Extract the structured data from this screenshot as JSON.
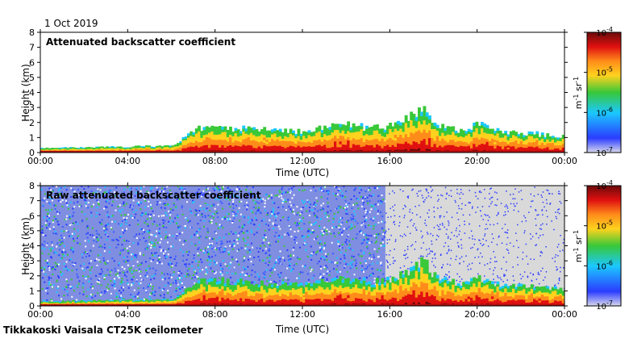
{
  "header": {
    "date": "1 Oct 2019"
  },
  "footer": {
    "site": "Tikkakoski Vaisala CT25K ceilometer"
  },
  "colors": {
    "background": "#ffffff",
    "plot_background_top": "#ffffff",
    "plot_background_bottom": "#d9d9d9",
    "colormap": [
      "#d8d8ec",
      "#2b3cff",
      "#1bc8ff",
      "#38c838",
      "#ffd21e",
      "#ff8c1a",
      "#e01010",
      "#6a0a0a"
    ]
  },
  "chart_data": [
    {
      "type": "heatmap",
      "title": "Attenuated backscatter coefficient",
      "xlabel": "Time (UTC)",
      "ylabel": "Height (km)",
      "x_ticks": [
        "00:00",
        "04:00",
        "08:00",
        "12:00",
        "16:00",
        "20:00",
        "00:00"
      ],
      "y_ticks": [
        "0",
        "1",
        "2",
        "3",
        "4",
        "5",
        "6",
        "7",
        "8"
      ],
      "xlim_hours": [
        0,
        24
      ],
      "ylim_km": [
        0,
        8
      ],
      "grid": false,
      "colorbar": {
        "ticks": [
          "10-7",
          "10-6",
          "10-5",
          "10-4"
        ],
        "label": "m-1 sr-1",
        "scale": "log",
        "range": [
          1e-07,
          0.0001
        ]
      },
      "approx_layer_top_km": {
        "hours": [
          0,
          2,
          4,
          6,
          7.2,
          8,
          10,
          12,
          14,
          15,
          16,
          17,
          17.5,
          18,
          19,
          20,
          21,
          22,
          23,
          24
        ],
        "values": [
          0.3,
          0.35,
          0.4,
          0.45,
          1.6,
          1.7,
          1.5,
          1.4,
          1.9,
          1.6,
          1.8,
          2.5,
          3.0,
          2.0,
          1.5,
          1.9,
          1.4,
          1.3,
          1.2,
          1.1
        ]
      }
    },
    {
      "type": "heatmap",
      "title": "Raw attenuated backscatter coefficient",
      "xlabel": "Time (UTC)",
      "ylabel": "Height (km)",
      "x_ticks": [
        "00:00",
        "04:00",
        "08:00",
        "12:00",
        "16:00",
        "20:00",
        "00:00"
      ],
      "y_ticks": [
        "0",
        "1",
        "2",
        "3",
        "4",
        "5",
        "6",
        "7",
        "8"
      ],
      "xlim_hours": [
        0,
        24
      ],
      "ylim_km": [
        0,
        8
      ],
      "grid": false,
      "colorbar": {
        "ticks": [
          "10-7",
          "10-6",
          "10-5",
          "10-4"
        ],
        "label": "m-1 sr-1",
        "scale": "log",
        "range": [
          1e-07,
          0.0001
        ]
      },
      "approx_noise_end_hour": 15.8
    }
  ]
}
